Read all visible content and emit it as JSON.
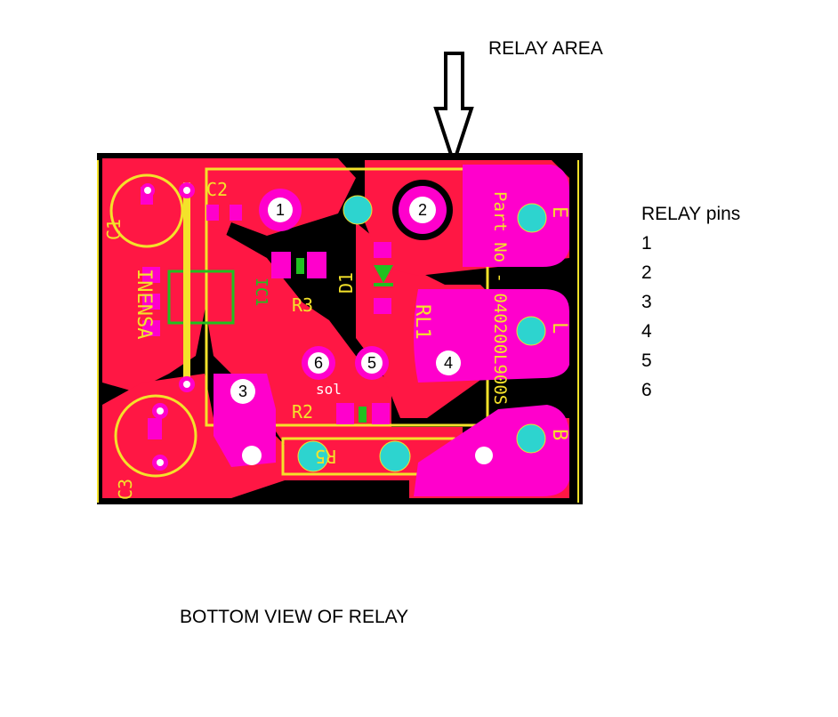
{
  "labels": {
    "relay_area": "RELAY AREA",
    "bottom_view": "BOTTOM VIEW OF RELAY"
  },
  "pins_panel": {
    "title": "RELAY pins",
    "items": [
      "1",
      "2",
      "3",
      "4",
      "5",
      "6"
    ]
  },
  "pcb": {
    "silkscreen": {
      "c1": "C1",
      "c2": "C2",
      "c3": "C3",
      "ic1": "IC1",
      "r3": "R3",
      "r2": "R2",
      "r5": "R5",
      "d1": "D1",
      "rl1": "RL1",
      "sol": "sol",
      "part_no": "Part No - 040200L900S",
      "brand": "INENSA",
      "term_e": "E",
      "term_l": "L",
      "term_b": "B"
    },
    "relay_pins": [
      "1",
      "2",
      "3",
      "4",
      "5",
      "6"
    ],
    "colors": {
      "board": "#000000",
      "copper": "#ff1744",
      "pad": "#ff00cc",
      "via": "#2dd4cf",
      "silk": "#f4e22a",
      "green_silk": "#20c020"
    }
  }
}
